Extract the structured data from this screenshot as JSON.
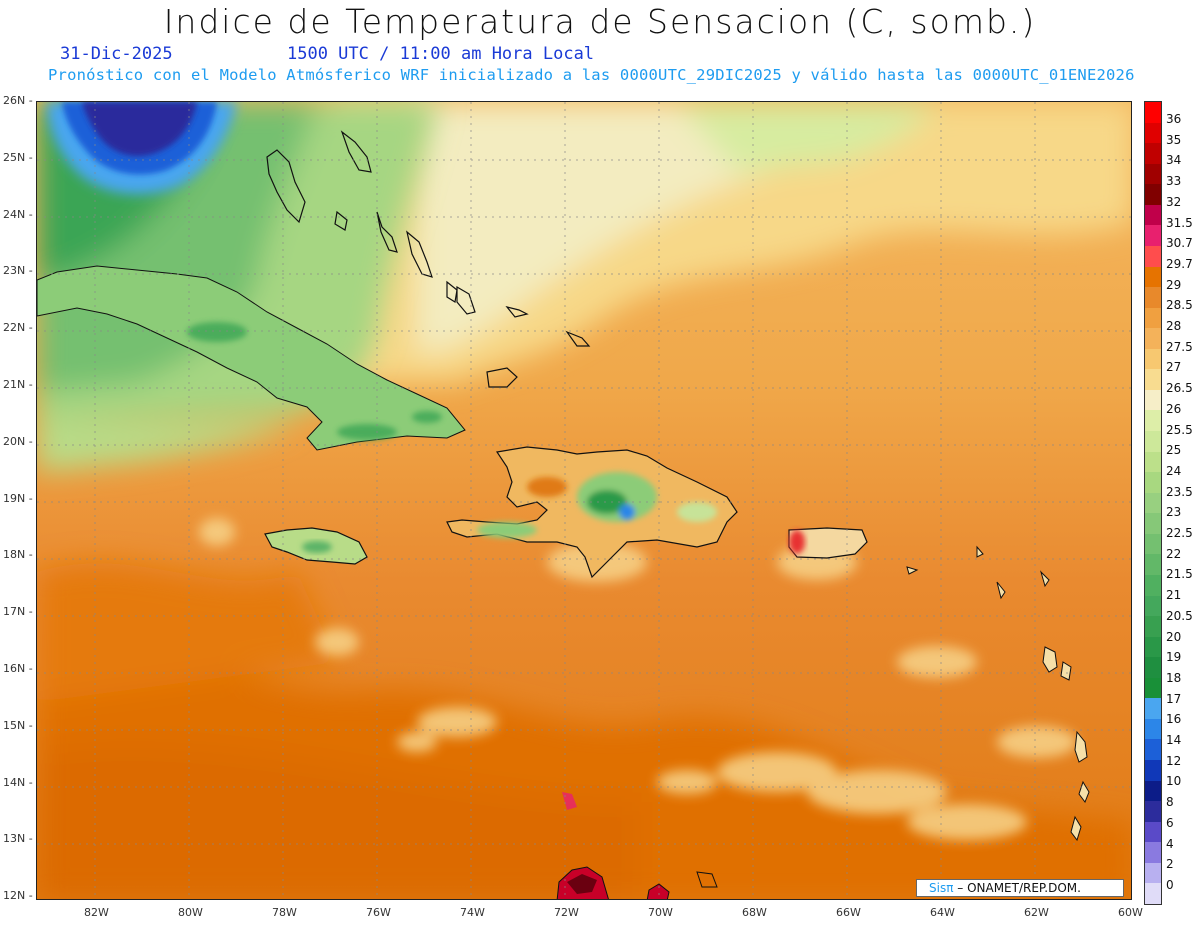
{
  "header": {
    "title": "Indice de Temperatura de Sensacion (C, somb.)",
    "date": "31-Dic-2025",
    "hour": "1500 UTC / 11:00 am Hora Local",
    "subtitle": "Pronóstico con el Modelo Atmósferico WRF inicializado a las 0000UTC_29DIC2025 y válido hasta las  0000UTC_01ENE2026"
  },
  "map": {
    "lat_labels": [
      "26N",
      "25N",
      "24N",
      "23N",
      "22N",
      "21N",
      "20N",
      "19N",
      "18N",
      "17N",
      "16N",
      "15N",
      "14N",
      "13N",
      "12N"
    ],
    "lon_labels": [
      "82W",
      "80W",
      "78W",
      "76W",
      "74W",
      "72W",
      "70W",
      "68W",
      "66W",
      "64W",
      "62W",
      "60W"
    ],
    "credit_brand": "Sisπ",
    "credit_text": " – ONAMET/REP.DOM."
  },
  "colorbar": {
    "labels": [
      "36",
      "35",
      "34",
      "33",
      "32",
      "31.5",
      "30.7",
      "29.7",
      "29",
      "28.5",
      "28",
      "27.5",
      "27",
      "26.5",
      "26",
      "25.5",
      "25",
      "24",
      "23.5",
      "23",
      "22.5",
      "22",
      "21.5",
      "21",
      "20.5",
      "20",
      "19",
      "18",
      "17",
      "16",
      "14",
      "12",
      "10",
      "8",
      "6",
      "4",
      "2",
      "0"
    ],
    "colors": [
      "#ff0000",
      "#e00000",
      "#c00000",
      "#a00000",
      "#800000",
      "#c0004a",
      "#e8206e",
      "#ff4d4d",
      "#e67300",
      "#e8892b",
      "#f0a040",
      "#f4b25a",
      "#f7c870",
      "#f8dc90",
      "#f6eec8",
      "#ddeea8",
      "#cde89a",
      "#bce08a",
      "#a8d880",
      "#98d080",
      "#86c878",
      "#74c070",
      "#62b868",
      "#50b060",
      "#44a85c",
      "#38a050",
      "#2a9848",
      "#1f8f40",
      "#199038",
      "#4aa6f0",
      "#2c86e8",
      "#1c60d8",
      "#1038b8",
      "#0c1c88",
      "#2c2c9c",
      "#5a4ac8",
      "#8a7ae0",
      "#b8b0f0",
      "#e0dcf8"
    ]
  },
  "palette": {
    "ocean_orange": "#e88a32",
    "deep_orange": "#e07000",
    "light_orange": "#f3b25a",
    "cream": "#f6e8b8",
    "green": "#7cc873",
    "dark_green": "#2a9a48",
    "blue": "#1c60d8",
    "navy": "#2a2a98"
  }
}
